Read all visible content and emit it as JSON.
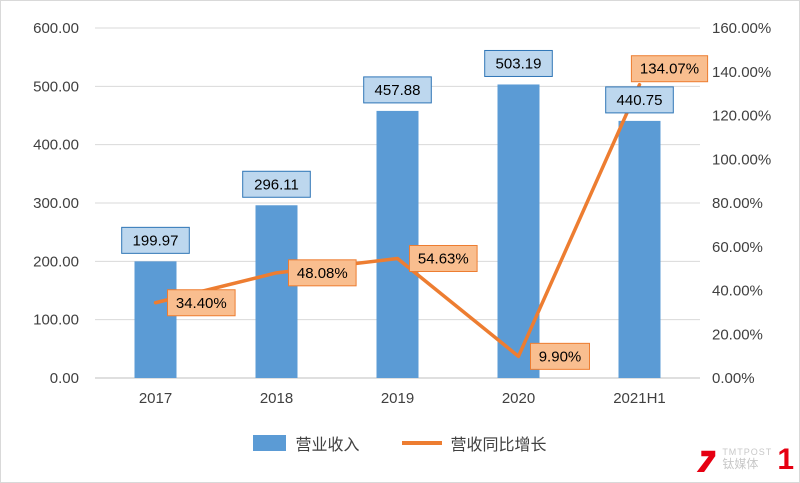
{
  "chart_data": {
    "type": "bar",
    "subtype": "combo-bar-line",
    "categories": [
      "2017",
      "2018",
      "2019",
      "2020",
      "2021H1"
    ],
    "series": [
      {
        "name": "营业收入",
        "type": "bar",
        "axis": "left",
        "color": "#5B9BD5",
        "values": [
          199.97,
          296.11,
          457.88,
          503.19,
          440.75
        ],
        "labels": [
          "199.97",
          "296.11",
          "457.88",
          "503.19",
          "440.75"
        ],
        "label_fill": "#BDD7EE",
        "label_border": "#2E75B6"
      },
      {
        "name": "营收同比增长",
        "type": "line",
        "axis": "right",
        "color": "#ED7D31",
        "values": [
          34.4,
          48.08,
          54.63,
          9.9,
          134.07
        ],
        "labels": [
          "34.40%",
          "48.08%",
          "54.63%",
          "9.90%",
          "134.07%"
        ],
        "label_fill": "#F9BE8F",
        "label_border": "#ED7D31"
      }
    ],
    "left_axis": {
      "min": 0,
      "max": 600,
      "step": 100,
      "tick_labels": [
        "0.00",
        "100.00",
        "200.00",
        "300.00",
        "400.00",
        "500.00",
        "600.00"
      ]
    },
    "right_axis": {
      "min": 0,
      "max": 160,
      "step": 20,
      "tick_labels": [
        "0.00%",
        "20.00%",
        "40.00%",
        "60.00%",
        "80.00%",
        "100.00%",
        "120.00%",
        "140.00%",
        "160.00%"
      ]
    },
    "grid": true,
    "legend_position": "bottom",
    "line_label_positions": [
      "right",
      "right",
      "right",
      "right",
      "above"
    ],
    "gridline_color": "#D9D9D9",
    "axis_line_color": "#BFBFBF",
    "tick_text_color": "#404040"
  },
  "legend": {
    "items": [
      {
        "label": "营业收入",
        "marker": "bar-swatch",
        "color": "#5B9BD5"
      },
      {
        "label": "营收同比增长",
        "marker": "line-swatch",
        "color": "#ED7D31"
      }
    ]
  },
  "watermark": {
    "brand": "TMTPOST",
    "brand_cn": "钛媒体",
    "badge": "1",
    "color": "#E60012"
  }
}
